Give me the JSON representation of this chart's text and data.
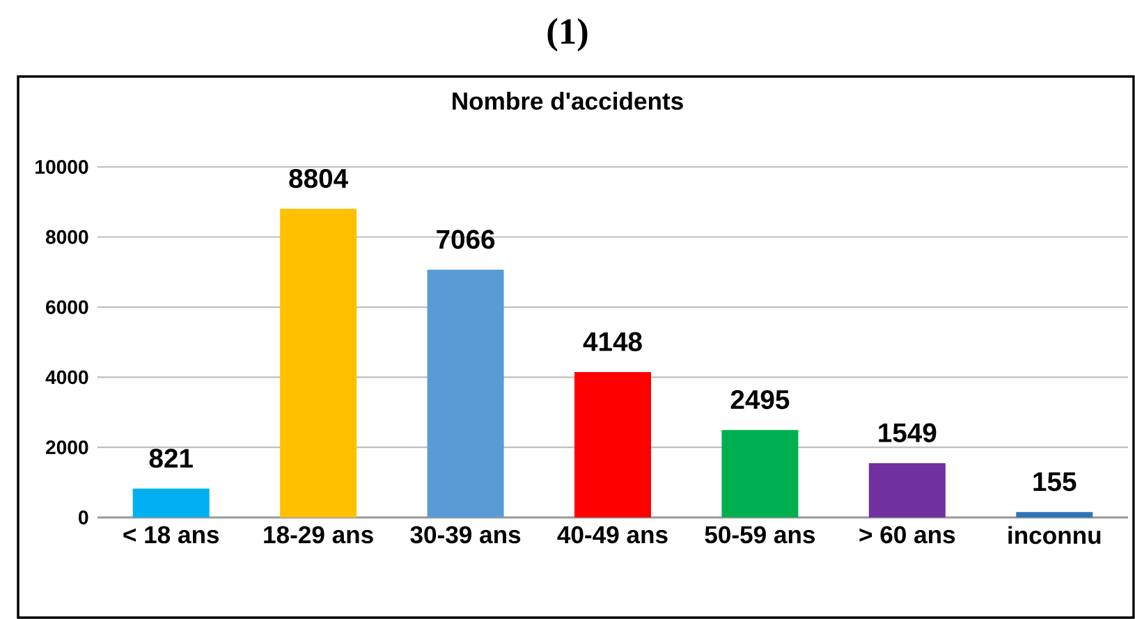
{
  "chart_data": {
    "type": "bar",
    "title": "(1)",
    "subtitle": "Nombre d'accidents",
    "categories": [
      "< 18 ans",
      "18-29 ans",
      "30-39 ans",
      "40-49 ans",
      "50-59 ans",
      "> 60 ans",
      "inconnu"
    ],
    "values": [
      821,
      8804,
      7066,
      4148,
      2495,
      1549,
      155
    ],
    "colors": [
      "#00b0f0",
      "#ffc000",
      "#5b9bd5",
      "#ff0000",
      "#00b050",
      "#7030a0",
      "#2e75b6"
    ],
    "ylim": [
      0,
      10000
    ],
    "yticks": [
      0,
      2000,
      4000,
      6000,
      8000,
      10000
    ],
    "grid": "y",
    "data_labels": true
  }
}
